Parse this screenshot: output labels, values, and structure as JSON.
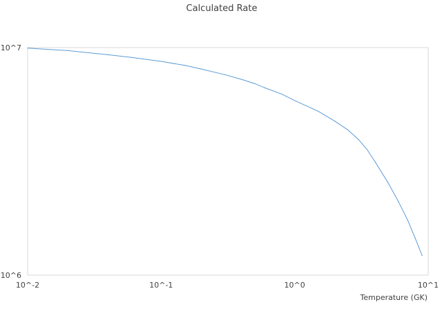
{
  "chart_data": {
    "type": "line",
    "title": "Calculated Rate",
    "xlabel": "Temperature (GK)",
    "ylabel": "",
    "x_scale": "log",
    "y_scale": "log",
    "xlim": [
      0.01,
      10
    ],
    "ylim": [
      1000000,
      10000000
    ],
    "x_ticks": [
      "10^-2",
      "10^-1",
      "10^0",
      "10^1"
    ],
    "y_ticks": [
      "10^6",
      "10^7"
    ],
    "grid": false,
    "legend": "none",
    "series": [
      {
        "color": "#5B9BD5",
        "x": [
          0.01,
          0.02,
          0.04,
          0.06,
          0.1,
          0.15,
          0.2,
          0.3,
          0.4,
          0.5,
          0.6,
          0.8,
          1.0,
          1.5,
          2.0,
          2.5,
          3.0,
          3.5,
          4.0,
          5.0,
          6.0,
          7.0,
          8.0,
          9.0
        ],
        "y": [
          9950000,
          9700000,
          9300000,
          9050000,
          8700000,
          8350000,
          8050000,
          7600000,
          7250000,
          6950000,
          6650000,
          6250000,
          5850000,
          5250000,
          4750000,
          4350000,
          3950000,
          3550000,
          3150000,
          2550000,
          2100000,
          1750000,
          1450000,
          1220000
        ]
      }
    ]
  }
}
